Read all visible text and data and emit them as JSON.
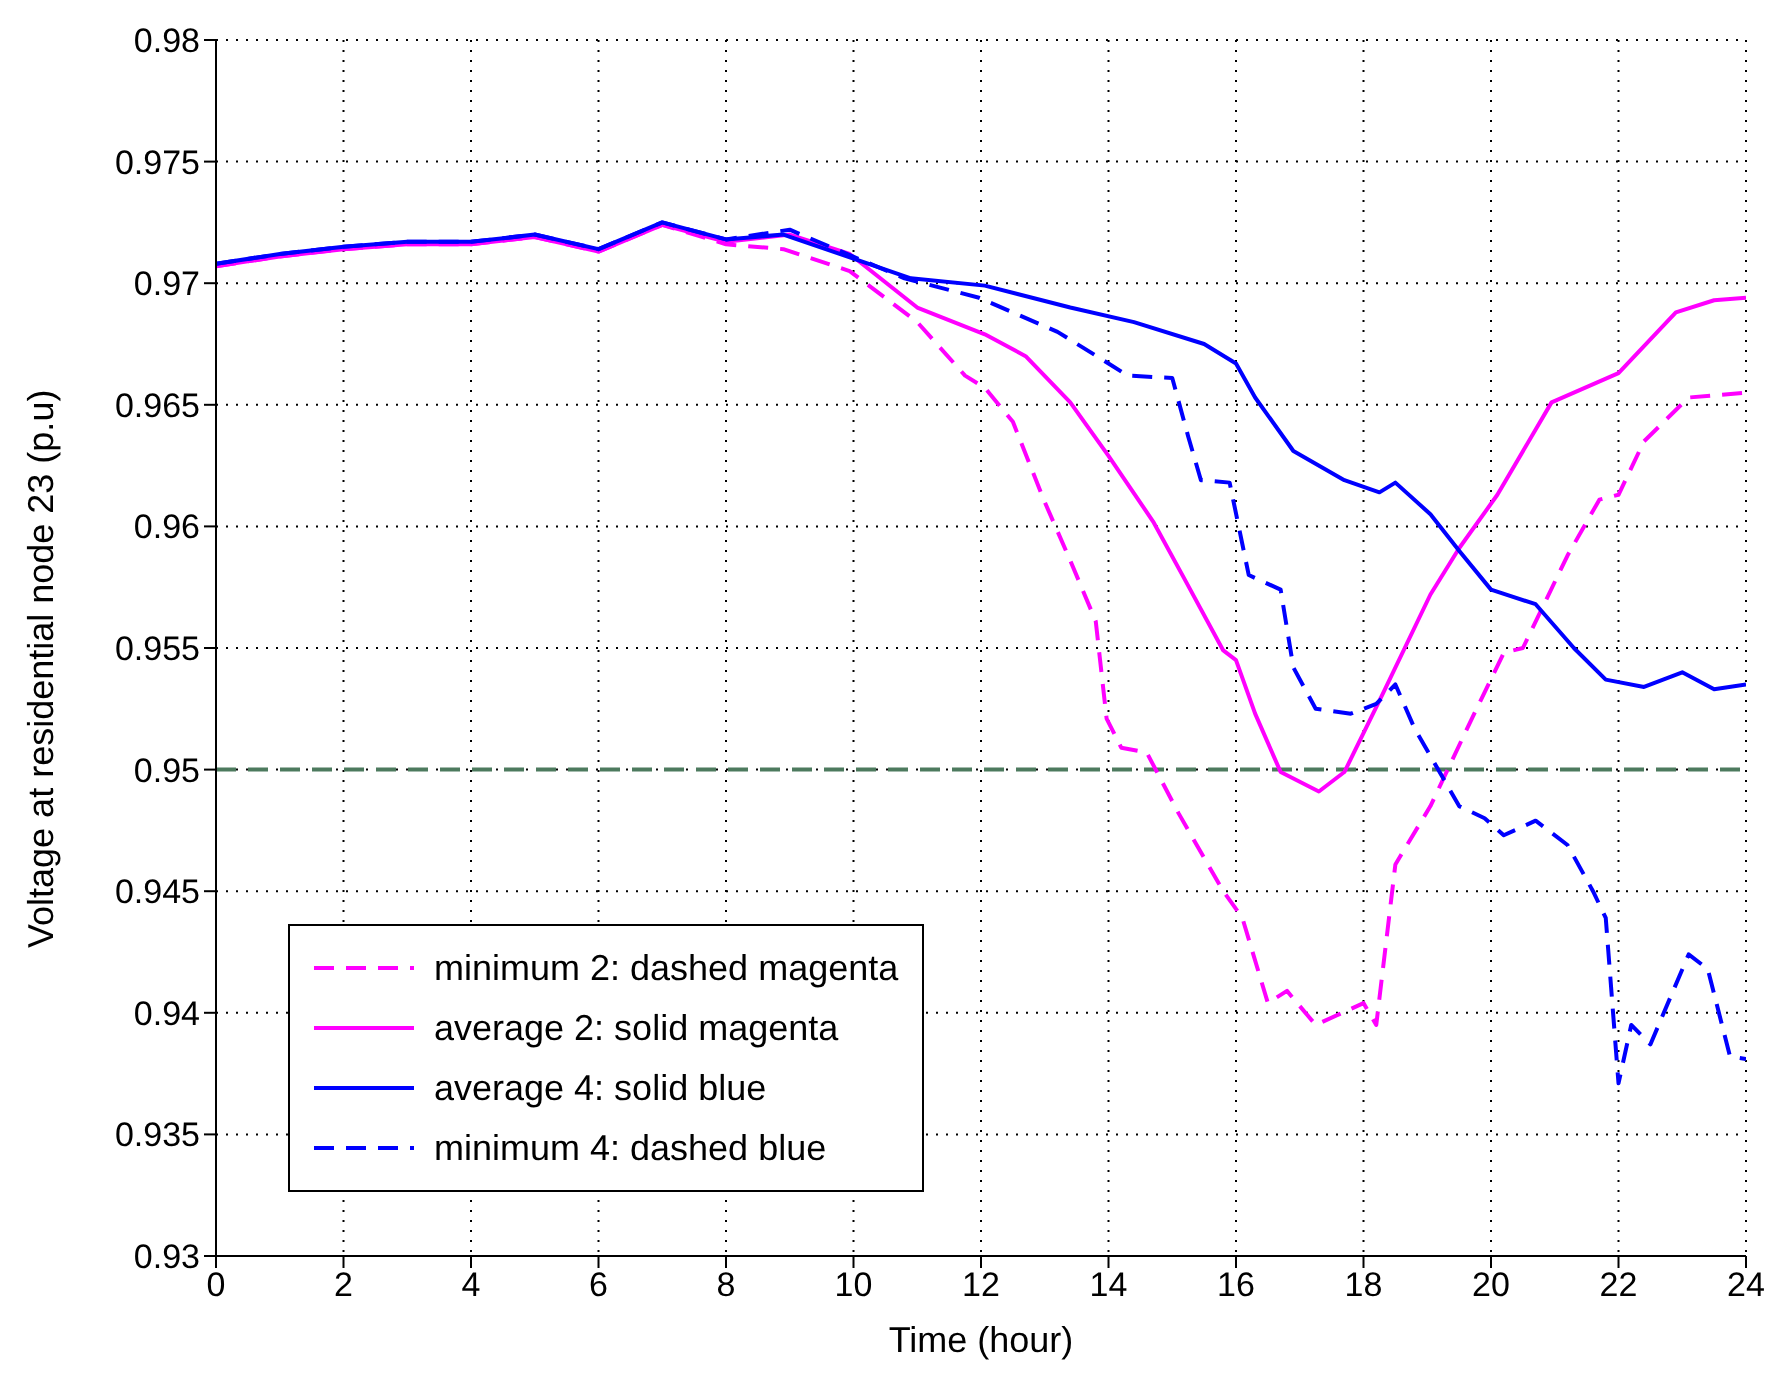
{
  "chart_data": {
    "type": "line",
    "xlabel": "Time (hour)",
    "ylabel": "Voltage at residential node 23 (p.u)",
    "xlim": [
      0,
      24
    ],
    "xticks": [
      0,
      2,
      4,
      6,
      8,
      10,
      12,
      14,
      16,
      18,
      20,
      22,
      24
    ],
    "ylim": [
      0.93,
      0.98
    ],
    "yticks": [
      0.93,
      0.935,
      0.94,
      0.945,
      0.95,
      0.955,
      0.96,
      0.965,
      0.97,
      0.975,
      0.98
    ],
    "grid": true,
    "legend": "bottom left",
    "marker": "none",
    "ref_lines": [
      {
        "axis": "y",
        "value": 0.95,
        "color": "#4d7a5e",
        "line_style": "dashed"
      }
    ],
    "series": [
      {
        "name": "minimum 2: dashed magenta",
        "color": "#ff00ff",
        "line_style": "dashed",
        "x": [
          0,
          1,
          2,
          3,
          4,
          5,
          6,
          7,
          8,
          8.9,
          9.94,
          11,
          11.75,
          12.06,
          12.5,
          13,
          13.4,
          13.8,
          13.97,
          14.2,
          14.6,
          15.1,
          15.8,
          16.1,
          16.5,
          16.8,
          17.25,
          18,
          18.2,
          18.5,
          19.05,
          19.7,
          20.2,
          20.5,
          21.2,
          21.7,
          22,
          22.4,
          23.1,
          24
        ],
        "values": [
          0.9707,
          0.9711,
          0.9714,
          0.9716,
          0.9716,
          0.9719,
          0.9713,
          0.9724,
          0.9716,
          0.9714,
          0.9705,
          0.9684,
          0.9662,
          0.9657,
          0.9643,
          0.961,
          0.9586,
          0.9561,
          0.9521,
          0.9509,
          0.9507,
          0.9482,
          0.945,
          0.9439,
          0.9404,
          0.9409,
          0.9395,
          0.9404,
          0.9395,
          0.9461,
          0.9485,
          0.9521,
          0.9548,
          0.955,
          0.9588,
          0.9611,
          0.9613,
          0.9635,
          0.9653,
          0.9655
        ]
      },
      {
        "name": "average 2: solid magenta",
        "color": "#ff00ff",
        "line_style": "solid",
        "x": [
          0,
          1,
          2,
          3,
          4,
          5,
          6,
          7,
          8,
          9,
          9.94,
          11,
          12.06,
          12.7,
          13.4,
          14,
          14.7,
          15.2,
          15.8,
          16,
          16.3,
          16.7,
          17.3,
          17.7,
          18.3,
          19.05,
          19.5,
          20.1,
          20.95,
          22,
          22.9,
          23.5,
          24
        ],
        "values": [
          0.9707,
          0.9711,
          0.9714,
          0.9716,
          0.9716,
          0.9719,
          0.9713,
          0.9724,
          0.9717,
          0.972,
          0.9712,
          0.969,
          0.9679,
          0.967,
          0.9651,
          0.9629,
          0.9602,
          0.9578,
          0.9549,
          0.9545,
          0.9523,
          0.9499,
          0.9491,
          0.9499,
          0.9531,
          0.9572,
          0.9591,
          0.9613,
          0.9651,
          0.9663,
          0.9688,
          0.9693,
          0.9694
        ]
      },
      {
        "name": "average 4: solid blue",
        "color": "#0000ff",
        "line_style": "solid",
        "x": [
          0,
          1,
          2,
          3,
          4,
          5,
          6,
          7,
          8,
          8.9,
          10.9,
          12.06,
          13.4,
          14.4,
          15.5,
          16,
          16.3,
          16.9,
          17.7,
          18.25,
          18.5,
          19.05,
          19.5,
          20,
          20.7,
          21.3,
          21.8,
          22.4,
          23,
          23.5,
          24
        ],
        "values": [
          0.9708,
          0.9712,
          0.9715,
          0.9717,
          0.9717,
          0.972,
          0.9714,
          0.9725,
          0.9718,
          0.972,
          0.9702,
          0.9699,
          0.969,
          0.9684,
          0.9675,
          0.9667,
          0.9653,
          0.9631,
          0.9619,
          0.9614,
          0.9618,
          0.9605,
          0.959,
          0.9574,
          0.9568,
          0.955,
          0.9537,
          0.9534,
          0.954,
          0.9533,
          0.9535
        ]
      },
      {
        "name": "minimum 4: dashed blue",
        "color": "#0000ff",
        "line_style": "dashed",
        "x": [
          0,
          1,
          2,
          3,
          4,
          5,
          6,
          7,
          8,
          9,
          10.8,
          11.97,
          13.2,
          14,
          14.3,
          15,
          15.25,
          15.45,
          15.9,
          16.2,
          16.7,
          16.9,
          17.25,
          17.8,
          18.2,
          18.5,
          18.8,
          19.5,
          19.9,
          20.2,
          20.7,
          21.2,
          21.6,
          21.8,
          22,
          22.2,
          22.5,
          23.1,
          23.4,
          23.75,
          24
        ],
        "values": [
          0.9708,
          0.9712,
          0.9715,
          0.9717,
          0.9717,
          0.972,
          0.9714,
          0.9725,
          0.9718,
          0.9722,
          0.9702,
          0.9694,
          0.968,
          0.9667,
          0.9662,
          0.9661,
          0.9637,
          0.9619,
          0.9618,
          0.958,
          0.9574,
          0.9542,
          0.9525,
          0.9523,
          0.9527,
          0.9535,
          0.9517,
          0.9485,
          0.948,
          0.9473,
          0.9479,
          0.9469,
          0.945,
          0.9439,
          0.9371,
          0.9395,
          0.9387,
          0.9424,
          0.9418,
          0.9382,
          0.9381
        ]
      }
    ]
  }
}
